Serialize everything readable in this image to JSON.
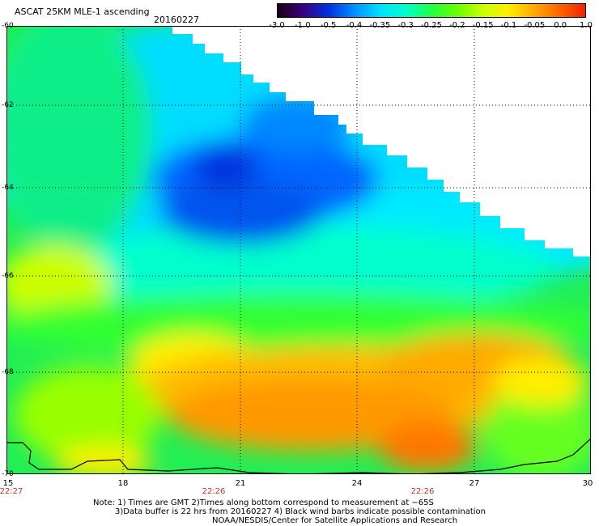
{
  "header": {
    "title": "ASCAT 25KM MLE-1 ascending",
    "date": "20160227"
  },
  "colorbar": {
    "ticks": [
      "-3.0",
      "-1.0",
      "-0.5",
      "-0.4",
      "-0.35",
      "-0.3",
      "-0.25",
      "-0.2",
      "-0.15",
      "-0.1",
      "-0.05",
      "0.0",
      "1.0"
    ],
    "colors": [
      "#1a0010",
      "#3a0080",
      "#0033dd",
      "#0090ff",
      "#00e0ff",
      "#00ffcc",
      "#22ff44",
      "#66ff00",
      "#ccff00",
      "#ffee00",
      "#ffaa00",
      "#ff6600",
      "#ee2200"
    ]
  },
  "map": {
    "lat_labels": [
      "-60",
      "-62",
      "-64",
      "-66",
      "-68",
      "-70"
    ],
    "lon_labels": [
      "15",
      "18",
      "21",
      "24",
      "27",
      "30"
    ],
    "time_labels": [
      "22:27",
      "22:26",
      "22:26"
    ]
  },
  "notes": {
    "line1": "Note: 1) Times are GMT 2)Times along bottom correspond to measurement at −65S",
    "line2": "3)Data buffer is 22 hrs from 20160227 4) Black wind barbs indicate possible contamination",
    "line3": "NOAA/NESDIS/Center for Satellite Applications and Research"
  }
}
